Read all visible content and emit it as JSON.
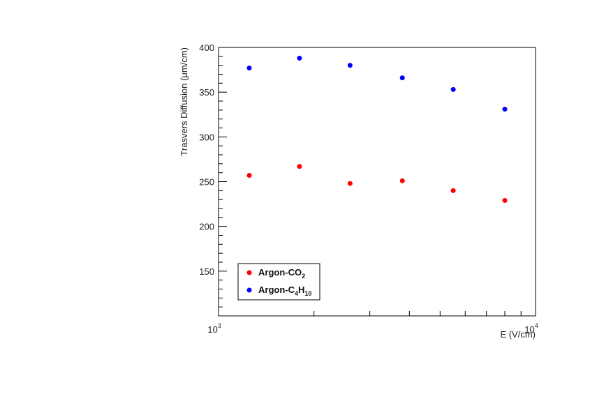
{
  "chart_data": {
    "type": "scatter",
    "xscale": "log",
    "xlabel": "E (V/cm)",
    "ylabel": "Trasvers Diffusion (μm/cm)",
    "xlim": [
      1000,
      10000
    ],
    "ylim": [
      100,
      400
    ],
    "yticks": [
      150,
      200,
      250,
      300,
      350,
      400
    ],
    "xtick_labels": [
      {
        "base": "10",
        "exp": "3"
      },
      {
        "base": "10",
        "exp": "4"
      }
    ],
    "grid": false,
    "legend_position": "bottom-left",
    "series": [
      {
        "name": "Argon-CO2",
        "legend": {
          "main": "Argon-CO",
          "sub": "2",
          "rest": ""
        },
        "color": "#ff0000",
        "x": [
          1250,
          1800,
          2600,
          3800,
          5500,
          8000
        ],
        "y": [
          257,
          267,
          248,
          251,
          240,
          229
        ]
      },
      {
        "name": "Argon-C4H10",
        "legend": {
          "main": "Argon-C",
          "sub": "4",
          "rest": "H",
          "sub2": "10"
        },
        "color": "#0000ff",
        "x": [
          1250,
          1800,
          2600,
          3800,
          5500,
          8000
        ],
        "y": [
          377,
          388,
          380,
          366,
          353,
          331
        ]
      }
    ]
  }
}
